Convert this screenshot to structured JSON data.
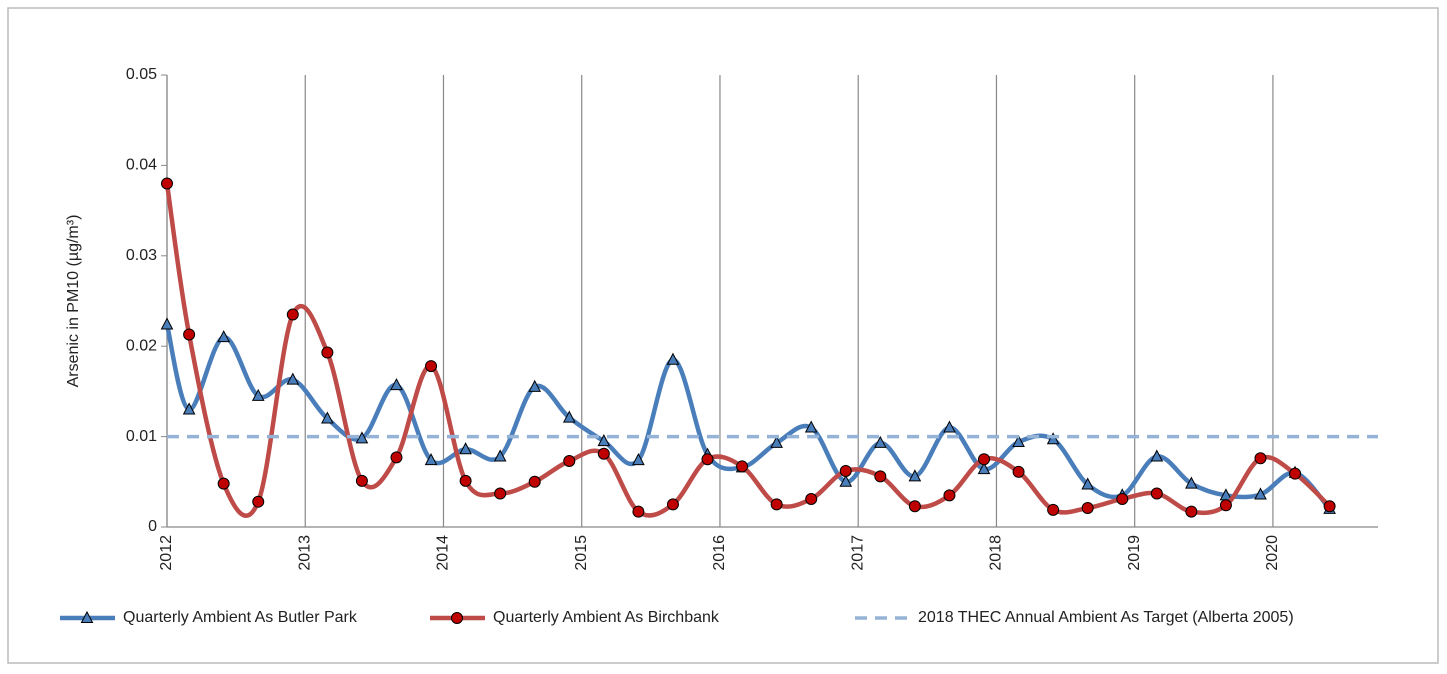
{
  "chart_data": {
    "type": "line",
    "y_label": "Arsenic in PM10 (µg/m³)",
    "xlim": [
      2012,
      2020.76
    ],
    "xticks": [
      2012,
      2013,
      2014,
      2015,
      2016,
      2017,
      2018,
      2019,
      2020
    ],
    "ylim": [
      0,
      0.05
    ],
    "yticks": [
      0,
      0.01,
      0.02,
      0.03,
      0.04,
      0.05
    ],
    "x_grid": true,
    "smooth": true,
    "legend": "bottom",
    "series": [
      {
        "name": "Quarterly Ambient As Butler Park",
        "color": "#4a7ebb",
        "marker": "triangle",
        "marker_color": "#4a7ebb",
        "x": [
          2012,
          2012.16,
          2012.41,
          2012.66,
          2012.91,
          2013.16,
          2013.41,
          2013.66,
          2013.91,
          2014.16,
          2014.41,
          2014.66,
          2014.91,
          2015.16,
          2015.41,
          2015.66,
          2015.91,
          2016.16,
          2016.41,
          2016.66,
          2016.91,
          2017.16,
          2017.41,
          2017.66,
          2017.91,
          2018.16,
          2018.41,
          2018.66,
          2018.91,
          2019.16,
          2019.41,
          2019.66,
          2019.91,
          2020.16,
          2020.41
        ],
        "values": [
          0.0224,
          0.013,
          0.021,
          0.0145,
          0.0163,
          0.012,
          0.0098,
          0.0157,
          0.0074,
          0.0086,
          0.0078,
          0.0155,
          0.0121,
          0.0095,
          0.0074,
          0.0185,
          0.008,
          0.0066,
          0.0093,
          0.011,
          0.005,
          0.0093,
          0.0056,
          0.011,
          0.0064,
          0.0094,
          0.0097,
          0.0047,
          0.0035,
          0.0078,
          0.0048,
          0.0035,
          0.0036,
          0.006,
          0.002
        ]
      },
      {
        "name": "Quarterly Ambient As Birchbank",
        "color": "#be4b48",
        "marker": "circle",
        "marker_color": "#c00000",
        "x": [
          2012,
          2012.16,
          2012.41,
          2012.66,
          2012.91,
          2013.16,
          2013.41,
          2013.66,
          2013.91,
          2014.16,
          2014.41,
          2014.66,
          2014.91,
          2015.16,
          2015.41,
          2015.66,
          2015.91,
          2016.16,
          2016.41,
          2016.66,
          2016.91,
          2017.16,
          2017.41,
          2017.66,
          2017.91,
          2018.16,
          2018.41,
          2018.66,
          2018.91,
          2019.16,
          2019.41,
          2019.66,
          2019.91,
          2020.16,
          2020.41
        ],
        "values": [
          0.038,
          0.0213,
          0.0048,
          0.0028,
          0.0235,
          0.0193,
          0.0051,
          0.0077,
          0.0178,
          0.0051,
          0.0037,
          0.005,
          0.0073,
          0.0081,
          0.0017,
          0.0025,
          0.0075,
          0.0067,
          0.0025,
          0.0031,
          0.0062,
          0.0056,
          0.0023,
          0.0035,
          0.0075,
          0.0061,
          0.0019,
          0.0021,
          0.0031,
          0.0037,
          0.0017,
          0.0024,
          0.0076,
          0.0059,
          0.0023
        ]
      },
      {
        "name": "2018 THEC Annual Ambient As Target (Alberta 2005)",
        "color": "#95b3d7",
        "dashed": true,
        "x": [
          2012,
          2020.76
        ],
        "values": [
          0.01,
          0.01
        ]
      }
    ]
  }
}
